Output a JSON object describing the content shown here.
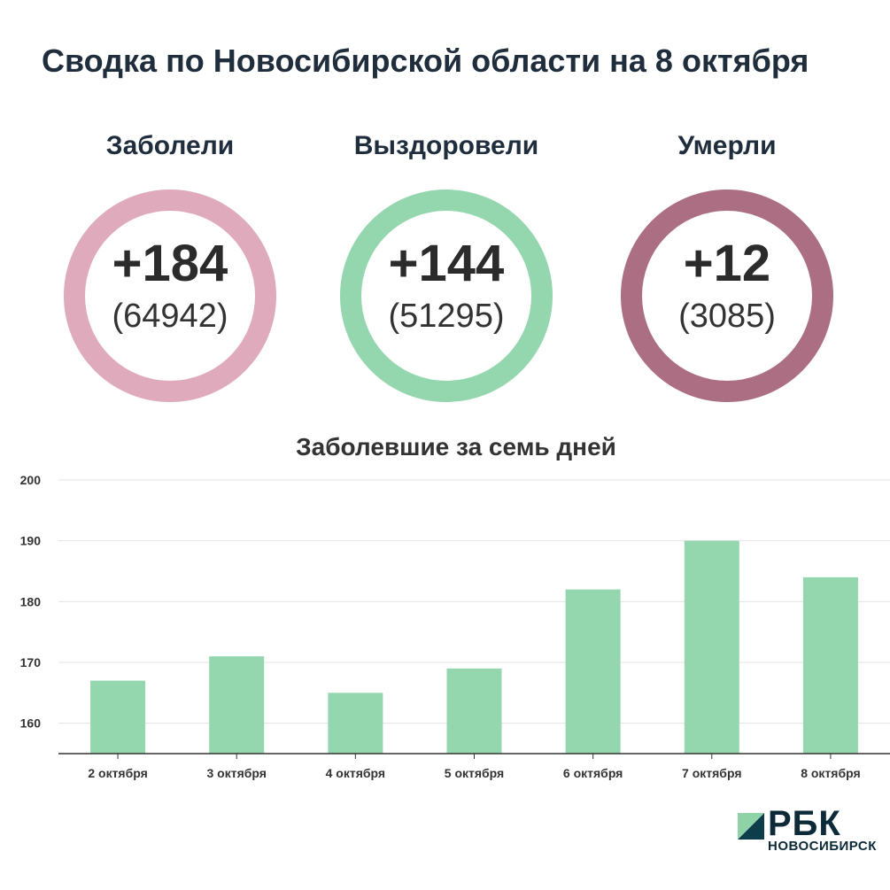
{
  "title": "Сводка по Новосибирской области на 8 октября",
  "stats": [
    {
      "label": "Заболели",
      "delta": "+184",
      "total": "(64942)",
      "color": "#dfaabb"
    },
    {
      "label": "Выздоровели",
      "delta": "+144",
      "total": "(51295)",
      "color": "#94d7ae"
    },
    {
      "label": "Умерли",
      "delta": "+12",
      "total": "(3085)",
      "color": "#ab6e83"
    }
  ],
  "chart_data": {
    "type": "bar",
    "title": "Заболевшие за семь дней",
    "categories": [
      "2 октября",
      "3 октября",
      "4 октября",
      "5 октября",
      "6 октября",
      "7 октября",
      "8 октября"
    ],
    "values": [
      167,
      171,
      165,
      169,
      182,
      190,
      184
    ],
    "ylim": [
      155,
      200
    ],
    "yticks": [
      160,
      170,
      180,
      190,
      200
    ],
    "grid": true,
    "bar_color": "#94d7ae"
  },
  "logo": {
    "name": "РБК",
    "region": "НОВОСИБИРСК"
  }
}
